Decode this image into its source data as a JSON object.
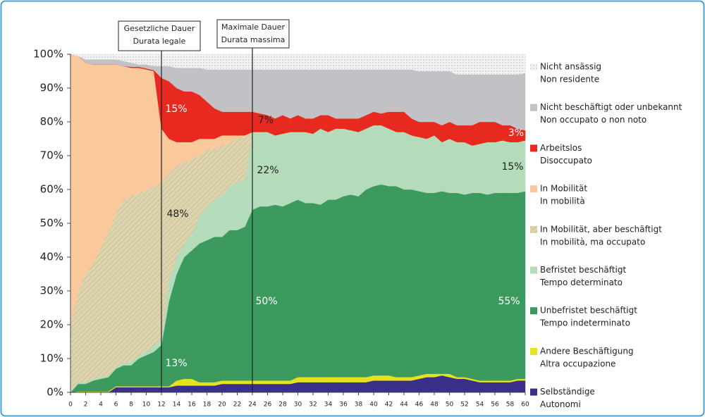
{
  "chart_data": {
    "type": "stacked_area",
    "x": [
      0,
      1,
      2,
      3,
      4,
      5,
      6,
      7,
      8,
      9,
      10,
      11,
      12,
      13,
      14,
      15,
      16,
      17,
      18,
      19,
      20,
      21,
      22,
      23,
      24,
      25,
      26,
      27,
      28,
      29,
      30,
      31,
      32,
      33,
      34,
      35,
      36,
      37,
      38,
      39,
      40,
      41,
      42,
      43,
      44,
      45,
      46,
      47,
      48,
      49,
      50,
      51,
      52,
      53,
      54,
      55,
      56,
      57,
      58,
      59,
      60
    ],
    "xlim": [
      0,
      60
    ],
    "xticks": [
      0,
      2,
      4,
      6,
      8,
      10,
      12,
      14,
      16,
      18,
      20,
      22,
      24,
      26,
      28,
      30,
      32,
      34,
      36,
      38,
      40,
      42,
      44,
      46,
      48,
      50,
      52,
      54,
      56,
      58,
      60
    ],
    "ylim": [
      0,
      100
    ],
    "yticks": [
      {
        "value": 0,
        "label": "0%"
      },
      {
        "value": 10,
        "label": "10%"
      },
      {
        "value": 20,
        "label": "20%"
      },
      {
        "value": 30,
        "label": "30%"
      },
      {
        "value": 40,
        "label": "40%"
      },
      {
        "value": 50,
        "label": "50%"
      },
      {
        "value": 60,
        "label": "60%"
      },
      {
        "value": 70,
        "label": "70%"
      },
      {
        "value": 80,
        "label": "80%"
      },
      {
        "value": 90,
        "label": "90%"
      },
      {
        "value": 100,
        "label": "100%"
      }
    ],
    "series": [
      {
        "name": [
          "Selbständige",
          "Autonomi"
        ],
        "color": "#3b2f8c",
        "values": [
          0,
          0,
          0,
          0,
          0,
          0,
          1.5,
          1.5,
          1.5,
          1.5,
          1.5,
          1.5,
          1.5,
          1.5,
          2,
          2,
          2,
          2,
          2,
          2,
          2.5,
          2.5,
          2.5,
          2.5,
          2.5,
          2.5,
          2.5,
          2.5,
          2.5,
          2.5,
          3,
          3,
          3,
          3,
          3,
          3,
          3,
          3,
          3,
          3,
          3.5,
          3.5,
          3.5,
          3.5,
          3.5,
          3.5,
          4,
          4.5,
          4.5,
          5,
          4.5,
          4,
          4,
          3.5,
          3,
          3,
          3,
          3,
          3,
          3.5,
          3.5
        ]
      },
      {
        "name": [
          "Andere Beschäftigung",
          "Altra occupazione"
        ],
        "color": "#e6e21e",
        "values": [
          0,
          0.3,
          0.3,
          0.3,
          0.3,
          0.3,
          0.3,
          0.3,
          0.3,
          0.3,
          0.3,
          0.3,
          0.3,
          0.3,
          1.5,
          2,
          2,
          1,
          1,
          1,
          1,
          1,
          1,
          1,
          1,
          1,
          1,
          1,
          1,
          1,
          1.5,
          1.5,
          1.5,
          1.5,
          1.5,
          1.5,
          1.5,
          1.5,
          1.5,
          1.5,
          1.5,
          1.5,
          1.5,
          1,
          1,
          1,
          1,
          1,
          1,
          0.5,
          1,
          0.5,
          0.5,
          0.5,
          0.5,
          0.5,
          0.5,
          0.5,
          0.5,
          0.5,
          0.5
        ]
      },
      {
        "name": [
          "Unbefristet beschäftigt",
          "Tempo indeterminato"
        ],
        "color": "#3d9a5e",
        "values": [
          0,
          2.2,
          2.2,
          3.2,
          3.7,
          4.2,
          5.2,
          6.2,
          6.2,
          8.2,
          9.2,
          10.2,
          12.2,
          25.2,
          31.5,
          36,
          38,
          41,
          42,
          43,
          42.5,
          44.5,
          44.5,
          45.5,
          50.5,
          51.5,
          51.5,
          52,
          51.5,
          52.5,
          52.5,
          51.5,
          51.5,
          51,
          52.5,
          52.5,
          53.5,
          54,
          53.5,
          55.5,
          56,
          56.5,
          56,
          56.5,
          55.5,
          55.5,
          54.5,
          53.5,
          53.5,
          54,
          53.5,
          54.5,
          54,
          55,
          55.5,
          55,
          55.5,
          55.5,
          55.5,
          55,
          55.5
        ]
      },
      {
        "name": [
          "Befristet beschäftigt",
          "Tempo determinato"
        ],
        "color": "#b4dcba",
        "values": [
          0,
          0.5,
          0.5,
          0.5,
          0.5,
          0.5,
          0.5,
          0.5,
          1,
          1,
          1,
          2,
          2,
          6,
          5,
          4,
          5,
          8,
          10,
          11,
          12,
          13,
          14,
          14,
          23,
          22,
          22,
          20.5,
          21.5,
          21,
          20,
          21,
          20.5,
          22.5,
          20,
          21,
          20,
          19,
          19,
          18,
          18,
          17.5,
          17,
          16,
          17,
          16,
          16,
          16,
          17,
          14.5,
          16,
          15,
          15.5,
          14,
          14.5,
          15.5,
          15,
          15.5,
          15,
          15,
          15
        ]
      },
      {
        "name": [
          "In Mobilität, aber beschäftigt",
          "In mobilità, ma occupato"
        ],
        "color": "#ddd4ae",
        "pattern": "hatch",
        "values": [
          20,
          27,
          32,
          34,
          38.5,
          43,
          45.5,
          48.5,
          49,
          48,
          48,
          47,
          46,
          32,
          27,
          24,
          22,
          18,
          17,
          15,
          15,
          13,
          13,
          13,
          0,
          0,
          0,
          0,
          0,
          0,
          0,
          0,
          0,
          0,
          0,
          0,
          0,
          0,
          0,
          0,
          0,
          0,
          0,
          0,
          0,
          0,
          0,
          0,
          0,
          0,
          0,
          0,
          0,
          0,
          0,
          0,
          0,
          0,
          0,
          0,
          0
        ]
      },
      {
        "name": [
          "In Mobilität",
          "In mobilità"
        ],
        "color": "#f9c99c",
        "values": [
          80,
          69.5,
          62.5,
          59,
          54,
          49,
          44,
          39.5,
          38,
          37,
          35.5,
          34,
          16,
          10,
          7,
          6,
          5,
          5,
          3,
          3,
          3,
          2,
          1,
          0,
          0,
          0,
          0,
          0,
          0,
          0,
          0,
          0,
          0,
          0,
          0,
          0,
          0,
          0,
          0,
          0,
          0,
          0,
          0,
          0,
          0,
          0,
          0,
          0,
          0,
          0,
          0,
          0,
          0,
          0,
          0,
          0,
          0,
          0,
          0,
          0,
          0
        ]
      },
      {
        "name": [
          "Arbeitslos",
          "Disoccupato"
        ],
        "color": "#e8291f",
        "values": [
          0,
          0,
          0,
          0,
          0,
          0,
          0,
          0,
          0.3,
          0.3,
          0.3,
          0.3,
          15,
          17,
          16,
          15,
          15,
          13,
          11,
          9,
          7,
          7,
          7,
          7,
          6,
          5.5,
          5,
          5,
          5.5,
          4,
          5,
          4,
          4.5,
          4,
          5,
          3,
          3,
          3.5,
          4,
          4,
          4,
          3.5,
          5,
          6,
          6,
          5,
          4.5,
          5,
          4,
          5,
          5,
          5,
          5,
          6,
          6.5,
          6,
          6,
          4.5,
          5,
          4,
          3
        ]
      },
      {
        "name": [
          "Nicht beschäftigt oder unbekannt",
          "Non occupato o non noto"
        ],
        "color": "#c2c2c6",
        "values": [
          0,
          0,
          1,
          1.5,
          1.5,
          1.5,
          1.5,
          1.5,
          1.2,
          0.7,
          1.2,
          1.2,
          3.5,
          4.5,
          6,
          7,
          7,
          8,
          9.5,
          11.5,
          12.5,
          12.5,
          12.5,
          12.5,
          12.5,
          13,
          13.5,
          14.5,
          13.5,
          14.5,
          13.5,
          14.5,
          14.5,
          13.5,
          13.5,
          14.5,
          14.5,
          14.5,
          14.5,
          13.5,
          12.5,
          13,
          12.5,
          12.5,
          12.5,
          14.5,
          15,
          15,
          15,
          16,
          15,
          15,
          15,
          15,
          14,
          14,
          14,
          15,
          15,
          16,
          17
        ]
      },
      {
        "name": [
          "Nicht ansässig",
          "Non residente"
        ],
        "color": "#ececec",
        "pattern": "dots",
        "values": [
          0,
          0.5,
          1.5,
          1.5,
          1.5,
          1.5,
          1.5,
          2,
          2.5,
          3,
          3,
          3.5,
          3.5,
          3.5,
          4,
          4,
          4,
          4,
          4.5,
          4.5,
          4.5,
          4.5,
          4.5,
          4.5,
          4.5,
          4.5,
          4.5,
          4.5,
          4.5,
          4.5,
          4.5,
          4.5,
          4.5,
          4.5,
          4.5,
          4.5,
          4.5,
          4.5,
          4.5,
          4.5,
          4.5,
          4.5,
          4.5,
          4.5,
          4.5,
          4.5,
          5,
          5,
          5,
          5,
          5,
          6,
          6,
          6,
          6,
          6,
          6,
          6,
          6,
          6,
          5.5
        ]
      }
    ],
    "annotations": [
      "15%",
      "7%",
      "3%",
      "48%",
      "22%",
      "15%",
      "50%",
      "55%",
      "13%"
    ],
    "reference_lines": [
      {
        "x": 12,
        "label": [
          "Gesetzliche Dauer",
          "Durata legale"
        ]
      },
      {
        "x": 24,
        "label": [
          "Maximale Dauer",
          "Durata massima"
        ]
      }
    ]
  }
}
